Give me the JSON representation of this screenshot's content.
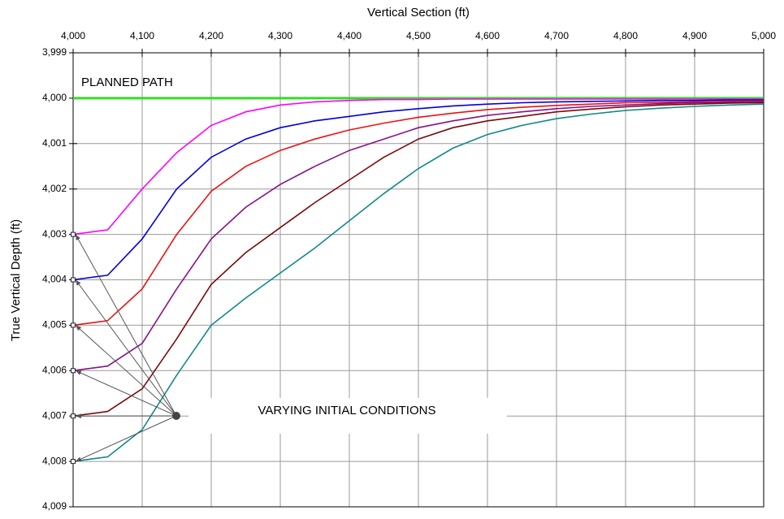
{
  "chart_data": {
    "type": "line",
    "title": "Vertical Section (ft)",
    "y_label": "True Vertical Depth (ft)",
    "annotations": [
      "PLANNED PATH",
      "VARYING INITIAL CONDITIONS"
    ],
    "x": [
      4000,
      4050,
      4100,
      4150,
      4200,
      4250,
      4300,
      4350,
      4400,
      4450,
      4500,
      4550,
      4600,
      4650,
      4700,
      4750,
      4800,
      4850,
      4900,
      4950,
      5000
    ],
    "xlim": [
      4000,
      5000
    ],
    "xticks": [
      {
        "value": 4000,
        "label": "4,000"
      },
      {
        "value": 4100,
        "label": "4,100"
      },
      {
        "value": 4200,
        "label": "4,200"
      },
      {
        "value": 4300,
        "label": "4,300"
      },
      {
        "value": 4400,
        "label": "4,400"
      },
      {
        "value": 4500,
        "label": "4,500"
      },
      {
        "value": 4600,
        "label": "4,600"
      },
      {
        "value": 4700,
        "label": "4,700"
      },
      {
        "value": 4800,
        "label": "4,800"
      },
      {
        "value": 4900,
        "label": "4,900"
      },
      {
        "value": 5000,
        "label": "5,000"
      }
    ],
    "ylim": [
      3999,
      4009
    ],
    "y_inverted": true,
    "yticks": [
      {
        "value": 3999,
        "label": "3,999"
      },
      {
        "value": 4000,
        "label": "4,000"
      },
      {
        "value": 4001,
        "label": "4,001"
      },
      {
        "value": 4002,
        "label": "4,002"
      },
      {
        "value": 4003,
        "label": "4,003"
      },
      {
        "value": 4004,
        "label": "4,004"
      },
      {
        "value": 4005,
        "label": "4,005"
      },
      {
        "value": 4006,
        "label": "4,006"
      },
      {
        "value": 4007,
        "label": "4,007"
      },
      {
        "value": 4008,
        "label": "4,008"
      },
      {
        "value": 4009,
        "label": "4,009"
      }
    ],
    "grid": true,
    "series": [
      {
        "color": "#33dd22",
        "values": [
          4000,
          4000,
          4000,
          4000,
          4000,
          4000,
          4000,
          4000,
          4000,
          4000,
          4000,
          4000,
          4000,
          4000,
          4000,
          4000,
          4000,
          4000,
          4000,
          4000,
          4000
        ]
      },
      {
        "color": "#ff00ff",
        "values": [
          4003,
          4002.9,
          4002,
          4001.2,
          4000.6,
          4000.3,
          4000.15,
          4000.08,
          4000.05,
          4000.03,
          4000.03,
          4000.02,
          4000.02,
          4000.02,
          4000.02,
          4000.02,
          4000.02,
          4000.02,
          4000.02,
          4000.02,
          4000.02
        ]
      },
      {
        "color": "#0000dd",
        "values": [
          4004,
          4003.9,
          4003.1,
          4002,
          4001.3,
          4000.9,
          4000.65,
          4000.5,
          4000.4,
          4000.3,
          4000.23,
          4000.17,
          4000.13,
          4000.1,
          4000.08,
          4000.07,
          4000.06,
          4000.05,
          4000.05,
          4000.04,
          4000.04
        ]
      },
      {
        "color": "#ee1111",
        "values": [
          4005,
          4004.9,
          4004.2,
          4003,
          4002.05,
          4001.5,
          4001.15,
          4000.9,
          4000.7,
          4000.55,
          4000.42,
          4000.33,
          4000.25,
          4000.2,
          4000.16,
          4000.13,
          4000.1,
          4000.09,
          4000.08,
          4000.07,
          4000.06
        ]
      },
      {
        "color": "#881188",
        "values": [
          4006,
          4005.9,
          4005.4,
          4004.2,
          4003.1,
          4002.4,
          4001.9,
          4001.5,
          4001.15,
          4000.9,
          4000.65,
          4000.5,
          4000.38,
          4000.3,
          4000.23,
          4000.18,
          4000.15,
          4000.12,
          4000.1,
          4000.09,
          4000.08
        ]
      },
      {
        "color": "#7a0a0a",
        "values": [
          4007,
          4006.9,
          4006.4,
          4005.3,
          4004.1,
          4003.4,
          4002.85,
          4002.3,
          4001.8,
          4001.3,
          4000.9,
          4000.65,
          4000.5,
          4000.4,
          4000.3,
          4000.24,
          4000.19,
          4000.15,
          4000.13,
          4000.11,
          4000.1
        ]
      },
      {
        "color": "#118888",
        "values": [
          4008,
          4007.9,
          4007.3,
          4006.1,
          4005,
          4004.4,
          4003.85,
          4003.3,
          4002.7,
          4002.1,
          4001.55,
          4001.1,
          4000.8,
          4000.6,
          4000.45,
          4000.35,
          4000.27,
          4000.22,
          4000.18,
          4000.15,
          4000.13
        ]
      }
    ]
  }
}
